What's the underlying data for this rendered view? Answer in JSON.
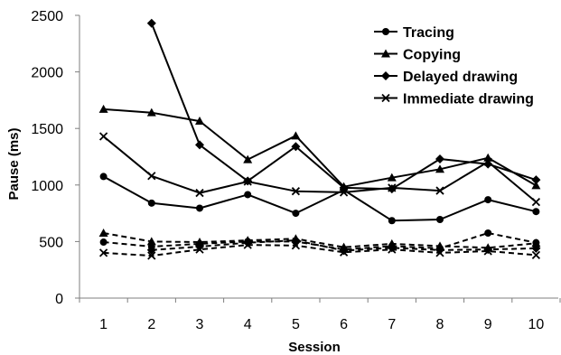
{
  "chart_data": {
    "type": "line",
    "xlabel": "Session",
    "ylabel": "Pause (ms)",
    "x": [
      1,
      2,
      3,
      4,
      5,
      6,
      7,
      8,
      9,
      10
    ],
    "ylim": [
      0,
      2500
    ],
    "yticks": [
      0,
      500,
      1000,
      1500,
      2000,
      2500
    ],
    "grid": false,
    "legend_position": "top-right",
    "series": [
      {
        "name": "Tracing",
        "marker": "circle",
        "line": "solid",
        "values": [
          1075,
          840,
          795,
          915,
          750,
          955,
          685,
          695,
          870,
          765
        ]
      },
      {
        "name": "Copying",
        "marker": "triangle",
        "line": "solid",
        "values": [
          1670,
          1640,
          1565,
          1225,
          1435,
          985,
          1065,
          1140,
          1240,
          995
        ]
      },
      {
        "name": "Delayed drawing",
        "marker": "diamond",
        "line": "solid",
        "values": [
          null,
          2430,
          1355,
          1035,
          1340,
          975,
          965,
          1230,
          1185,
          1045
        ]
      },
      {
        "name": "Immediate drawing",
        "marker": "cross",
        "line": "solid",
        "values": [
          1430,
          1080,
          930,
          1030,
          945,
          935,
          975,
          950,
          1205,
          850
        ]
      },
      {
        "name": "",
        "marker": "circle",
        "line": "dashed",
        "values": [
          495,
          455,
          480,
          500,
          500,
          430,
          460,
          440,
          575,
          490
        ]
      },
      {
        "name": "",
        "marker": "triangle",
        "line": "dashed",
        "values": [
          575,
          500,
          495,
          510,
          525,
          450,
          480,
          460,
          445,
          485
        ]
      },
      {
        "name": "",
        "marker": "diamond",
        "line": "dashed",
        "values": [
          null,
          425,
          455,
          490,
          510,
          420,
          445,
          425,
          430,
          440
        ]
      },
      {
        "name": "",
        "marker": "cross",
        "line": "dashed",
        "values": [
          400,
          375,
          430,
          470,
          465,
          405,
          430,
          400,
          415,
          380
        ]
      }
    ]
  }
}
